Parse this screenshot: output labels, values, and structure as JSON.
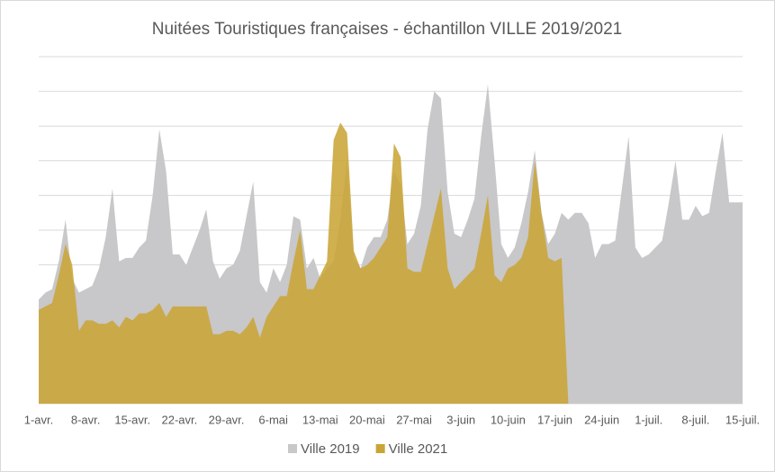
{
  "chart_data": {
    "type": "area",
    "title": "Nuitées Touristiques françaises - échantillon VILLE 2019/2021",
    "categories": [
      "1-avr.",
      null,
      null,
      null,
      null,
      null,
      null,
      "8-avr.",
      null,
      null,
      null,
      null,
      null,
      null,
      "15-avr.",
      null,
      null,
      null,
      null,
      null,
      null,
      "22-avr.",
      null,
      null,
      null,
      null,
      null,
      null,
      "29-avr.",
      null,
      null,
      null,
      null,
      null,
      null,
      "6-mai",
      null,
      null,
      null,
      null,
      null,
      null,
      "13-mai",
      null,
      null,
      null,
      null,
      null,
      null,
      "20-mai",
      null,
      null,
      null,
      null,
      null,
      null,
      "27-mai",
      null,
      null,
      null,
      null,
      null,
      null,
      "3-juin",
      null,
      null,
      null,
      null,
      null,
      null,
      "10-juin",
      null,
      null,
      null,
      null,
      null,
      null,
      "17-juin",
      null,
      null,
      null,
      null,
      null,
      null,
      "24-juin",
      null,
      null,
      null,
      null,
      null,
      null,
      "1-juil.",
      null,
      null,
      null,
      null,
      null,
      null,
      "8-juil.",
      null,
      null,
      null,
      null,
      null,
      null,
      "15-juil."
    ],
    "series": [
      {
        "name": "Ville 2019",
        "color": "#c8c7c9",
        "values": [
          3.0,
          3.2,
          3.3,
          4.1,
          5.3,
          3.6,
          3.2,
          3.3,
          3.4,
          3.9,
          4.8,
          6.2,
          4.1,
          4.2,
          4.2,
          4.5,
          4.7,
          6.0,
          7.9,
          6.7,
          4.3,
          4.3,
          4.0,
          4.5,
          5.0,
          5.6,
          4.1,
          3.6,
          3.9,
          4.0,
          4.4,
          5.4,
          6.4,
          3.5,
          3.2,
          3.9,
          3.5,
          4.0,
          5.4,
          5.3,
          3.9,
          4.2,
          3.6,
          3.9,
          4.1,
          5.3,
          7.0,
          4.2,
          3.9,
          4.5,
          4.8,
          4.8,
          5.3,
          6.7,
          6.3,
          4.6,
          4.9,
          5.7,
          7.9,
          9.0,
          8.8,
          6.1,
          4.9,
          4.8,
          5.3,
          5.9,
          7.7,
          9.2,
          7.0,
          4.6,
          4.2,
          4.5,
          5.2,
          6.1,
          7.3,
          5.5,
          4.6,
          4.9,
          5.5,
          5.3,
          5.5,
          5.5,
          5.2,
          4.2,
          4.6,
          4.6,
          4.7,
          6.2,
          7.7,
          4.5,
          4.2,
          4.3,
          4.5,
          4.7,
          5.8,
          7.0,
          5.3,
          5.3,
          5.7,
          5.4,
          5.5,
          6.7,
          7.8,
          5.8,
          5.8,
          5.8
        ]
      },
      {
        "name": "Ville 2021",
        "color": "#c9a537",
        "values": [
          2.7,
          2.8,
          2.9,
          3.7,
          4.6,
          4.0,
          2.1,
          2.4,
          2.4,
          2.3,
          2.3,
          2.4,
          2.2,
          2.5,
          2.4,
          2.6,
          2.6,
          2.7,
          2.9,
          2.5,
          2.8,
          2.8,
          2.8,
          2.8,
          2.8,
          2.8,
          2.0,
          2.0,
          2.1,
          2.1,
          2.0,
          2.2,
          2.5,
          1.9,
          2.5,
          2.8,
          3.1,
          3.1,
          4.1,
          5.0,
          3.3,
          3.3,
          3.7,
          4.1,
          7.6,
          8.1,
          7.8,
          4.4,
          3.9,
          4.0,
          4.2,
          4.5,
          4.8,
          7.5,
          7.1,
          3.9,
          3.8,
          3.8,
          4.6,
          5.4,
          6.2,
          3.9,
          3.3,
          3.5,
          3.7,
          3.9,
          4.9,
          6.0,
          3.7,
          3.5,
          3.9,
          4.0,
          4.2,
          4.8,
          7.0,
          5.5,
          4.2,
          4.1,
          4.2,
          0,
          null,
          null,
          null,
          null,
          null,
          null,
          null,
          null,
          null,
          null,
          null,
          null,
          null,
          null,
          null,
          null,
          null,
          null,
          null,
          null,
          null,
          null,
          null,
          null,
          null,
          null
        ]
      }
    ],
    "ylim": [
      0,
      10
    ],
    "yticks": [
      0,
      1,
      2,
      3,
      4,
      5,
      6,
      7,
      8,
      9,
      10
    ],
    "grid": true,
    "legend": "bottom"
  }
}
